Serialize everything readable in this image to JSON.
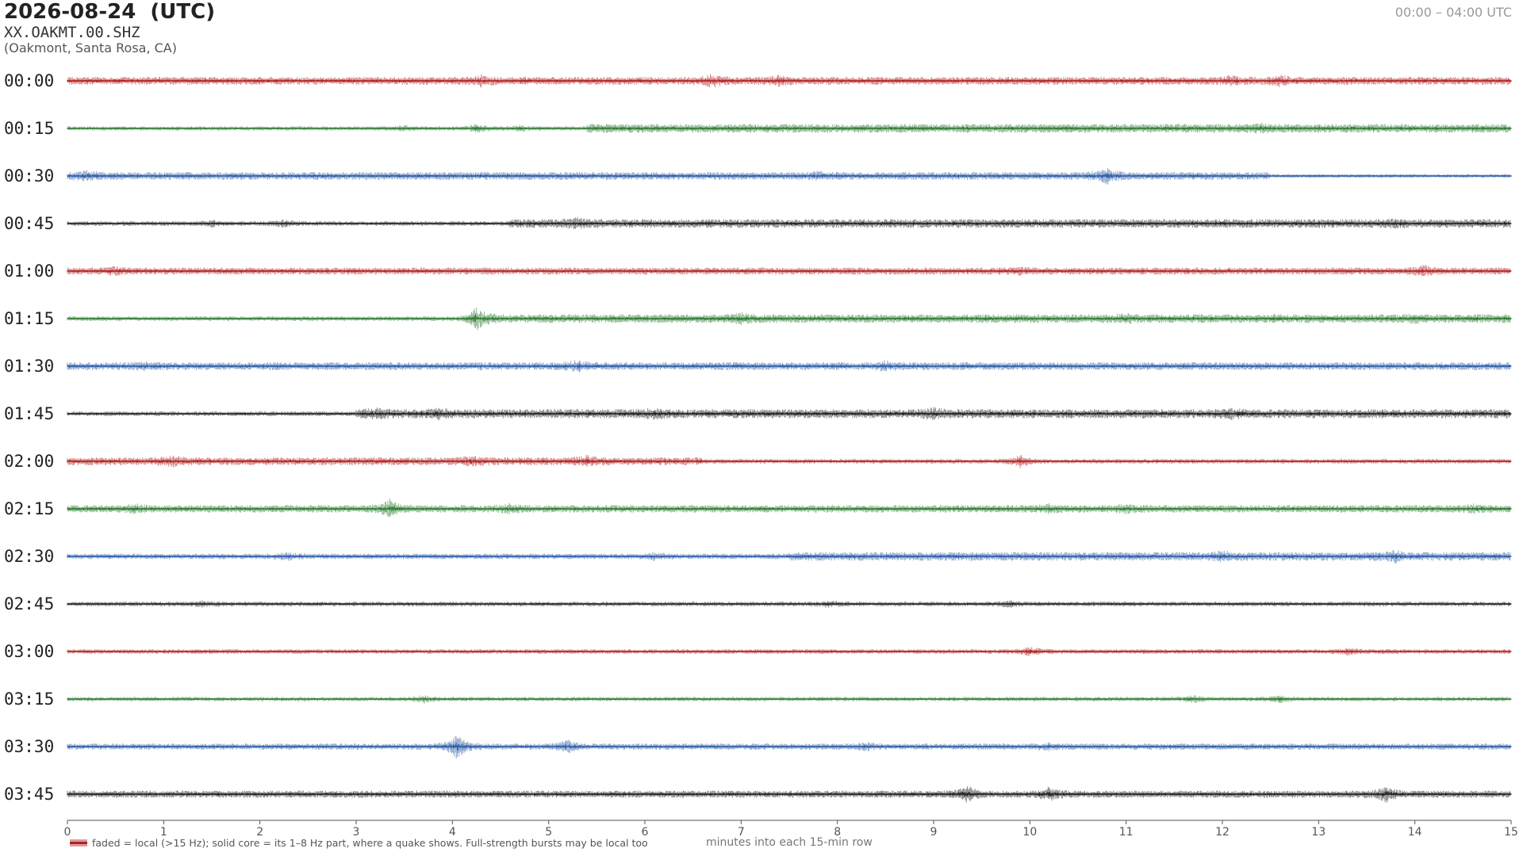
{
  "header": {
    "title": "2026-08-24  (UTC)",
    "station": "XX.OAKMT.00.SHZ",
    "location": "(Oakmont, Santa Rosa, CA)",
    "time_range": "00:00 – 04:00 UTC"
  },
  "legend": {
    "text": "faded = local (>15 Hz); solid core = its 1–8 Hz part, where a quake shows. Full-strength bursts may be local too"
  },
  "colors": {
    "red": "#b22222",
    "green": "#2e7d32",
    "blue": "#2f5fa7",
    "black": "#222222"
  },
  "chart_data": {
    "type": "line",
    "title": "2026-08-24  (UTC)",
    "xlabel": "minutes into each 15-min row",
    "ylabel": "",
    "xlim": [
      0,
      15
    ],
    "x_ticks": [
      "0",
      "1",
      "2",
      "3",
      "4",
      "5",
      "6",
      "7",
      "8",
      "9",
      "10",
      "11",
      "12",
      "13",
      "14",
      "15"
    ],
    "grid": false,
    "legend_position": "bottom-left",
    "series": [
      {
        "row": "00:00",
        "color": "red",
        "base": 0.35,
        "segments": [
          [
            0,
            15,
            1.0
          ]
        ],
        "bursts": [
          [
            4.3,
            0.7
          ],
          [
            6.7,
            1.0
          ],
          [
            7.4,
            0.7
          ],
          [
            12.1,
            0.6
          ],
          [
            12.6,
            0.7
          ]
        ]
      },
      {
        "row": "00:15",
        "color": "green",
        "base": 0.3,
        "segments": [
          [
            0,
            5.4,
            0.55
          ],
          [
            5.4,
            15,
            1.1
          ]
        ],
        "bursts": [
          [
            3.5,
            0.4
          ],
          [
            4.25,
            0.8
          ],
          [
            4.7,
            0.4
          ],
          [
            12.4,
            0.4
          ]
        ]
      },
      {
        "row": "00:30",
        "color": "blue",
        "base": 0.35,
        "segments": [
          [
            0,
            12.5,
            1.0
          ],
          [
            12.5,
            15,
            0.5
          ]
        ],
        "bursts": [
          [
            0.2,
            0.6
          ],
          [
            7.8,
            0.5
          ],
          [
            10.8,
            1.4
          ]
        ]
      },
      {
        "row": "00:45",
        "color": "black",
        "base": 0.3,
        "segments": [
          [
            0,
            4.6,
            0.6
          ],
          [
            4.6,
            15,
            1.1
          ]
        ],
        "bursts": [
          [
            1.5,
            0.5
          ],
          [
            2.25,
            0.6
          ],
          [
            5.3,
            0.6
          ],
          [
            13.8,
            0.4
          ]
        ]
      },
      {
        "row": "01:00",
        "color": "red",
        "base": 0.35,
        "segments": [
          [
            0,
            15,
            0.9
          ]
        ],
        "bursts": [
          [
            0.5,
            0.5
          ],
          [
            9.9,
            0.4
          ],
          [
            14.1,
            0.8
          ]
        ]
      },
      {
        "row": "01:15",
        "color": "green",
        "base": 0.3,
        "segments": [
          [
            0,
            4.2,
            0.6
          ],
          [
            4.2,
            15,
            1.1
          ]
        ],
        "bursts": [
          [
            4.25,
            2.0
          ],
          [
            7.0,
            0.6
          ],
          [
            11.0,
            0.5
          ],
          [
            14.0,
            0.4
          ]
        ]
      },
      {
        "row": "01:30",
        "color": "blue",
        "base": 0.35,
        "segments": [
          [
            0,
            15,
            1.0
          ]
        ],
        "bursts": [
          [
            0.8,
            0.4
          ],
          [
            5.3,
            0.8
          ],
          [
            8.5,
            0.6
          ]
        ]
      },
      {
        "row": "01:45",
        "color": "black",
        "base": 0.3,
        "segments": [
          [
            0,
            3.0,
            0.6
          ],
          [
            3.0,
            15,
            1.15
          ]
        ],
        "bursts": [
          [
            3.2,
            0.6
          ],
          [
            3.85,
            0.7
          ],
          [
            6.1,
            0.5
          ],
          [
            9.0,
            0.6
          ],
          [
            12.1,
            0.5
          ]
        ]
      },
      {
        "row": "02:00",
        "color": "red",
        "base": 0.35,
        "segments": [
          [
            0,
            6.6,
            1.0
          ],
          [
            6.6,
            15,
            0.6
          ]
        ],
        "bursts": [
          [
            1.1,
            0.7
          ],
          [
            4.2,
            0.6
          ],
          [
            5.4,
            0.7
          ],
          [
            9.9,
            1.2
          ]
        ]
      },
      {
        "row": "02:15",
        "color": "green",
        "base": 0.3,
        "segments": [
          [
            0,
            15,
            0.95
          ]
        ],
        "bursts": [
          [
            0.7,
            0.6
          ],
          [
            3.35,
            1.7
          ],
          [
            4.6,
            0.6
          ],
          [
            10.2,
            0.5
          ],
          [
            11.0,
            0.5
          ],
          [
            14.6,
            0.6
          ]
        ]
      },
      {
        "row": "02:30",
        "color": "blue",
        "base": 0.3,
        "segments": [
          [
            0,
            7.5,
            0.7
          ],
          [
            7.5,
            15,
            1.1
          ]
        ],
        "bursts": [
          [
            2.3,
            0.6
          ],
          [
            6.1,
            0.6
          ],
          [
            12.0,
            0.7
          ],
          [
            13.8,
            0.7
          ]
        ]
      },
      {
        "row": "02:45",
        "color": "black",
        "base": 0.25,
        "segments": [
          [
            0,
            15,
            0.6
          ]
        ],
        "bursts": [
          [
            1.4,
            0.4
          ],
          [
            7.9,
            0.5
          ],
          [
            9.8,
            0.5
          ]
        ]
      },
      {
        "row": "03:00",
        "color": "red",
        "base": 0.25,
        "segments": [
          [
            0,
            15,
            0.6
          ]
        ],
        "bursts": [
          [
            10.0,
            0.9
          ],
          [
            13.3,
            0.5
          ]
        ]
      },
      {
        "row": "03:15",
        "color": "green",
        "base": 0.25,
        "segments": [
          [
            0,
            15,
            0.55
          ]
        ],
        "bursts": [
          [
            3.7,
            0.7
          ],
          [
            11.7,
            0.7
          ],
          [
            12.6,
            0.6
          ]
        ]
      },
      {
        "row": "03:30",
        "color": "blue",
        "base": 0.3,
        "segments": [
          [
            0,
            15,
            0.8
          ]
        ],
        "bursts": [
          [
            4.05,
            2.6
          ],
          [
            5.2,
            1.2
          ],
          [
            8.3,
            0.6
          ],
          [
            10.2,
            0.5
          ]
        ]
      },
      {
        "row": "03:45",
        "color": "black",
        "base": 0.3,
        "segments": [
          [
            0,
            15,
            0.9
          ]
        ],
        "bursts": [
          [
            9.35,
            1.5
          ],
          [
            10.2,
            1.2
          ],
          [
            13.7,
            1.4
          ]
        ]
      }
    ]
  }
}
